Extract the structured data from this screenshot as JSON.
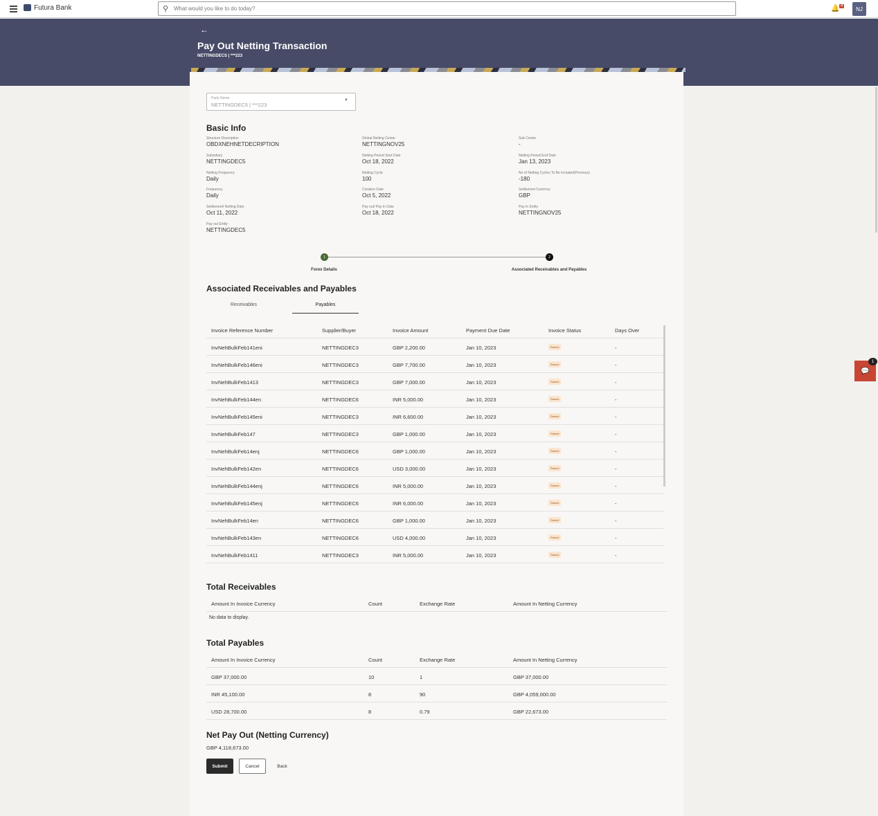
{
  "topbar": {
    "brand": "Futura Bank",
    "search_placeholder": "What would you like to do today?",
    "notification_count": "4",
    "avatar": "NJ"
  },
  "header": {
    "title": "Pay Out Netting Transaction",
    "subtitle": "NETTINGDECS | ***223"
  },
  "party": {
    "label": "Party Name",
    "value": "NETTINGDEC5 | ***223"
  },
  "basic_info": {
    "title": "Basic Info",
    "fields": [
      {
        "label": "Structure Description",
        "value": "OBDXNEHNETDECRIPTION"
      },
      {
        "label": "Global Netting Center",
        "value": "NETTINGNOV25"
      },
      {
        "label": "Sub Center",
        "value": "-"
      },
      {
        "label": "Subsidiary",
        "value": "NETTINGDEC5"
      },
      {
        "label": "Netting Period Start Date",
        "value": "Oct 18, 2022"
      },
      {
        "label": "Netting Period End Date",
        "value": "Jan 13, 2023"
      },
      {
        "label": "Netting Frequency",
        "value": "Daily"
      },
      {
        "label": "Netting Cycle",
        "value": "100"
      },
      {
        "label": "No of Netting Cycles To Be Included(Previous)",
        "value": "-180"
      },
      {
        "label": "Frequency",
        "value": "Daily"
      },
      {
        "label": "Creation Date",
        "value": "Oct 5, 2022"
      },
      {
        "label": "Settlement Currency",
        "value": "GBP"
      },
      {
        "label": "Settlement/ Netting Date",
        "value": "Oct 11, 2022"
      },
      {
        "label": "Pay out/ Pay In Date",
        "value": "Oct 18, 2022"
      },
      {
        "label": "Pay In Entity",
        "value": "NETTINGNOV25"
      },
      {
        "label": "Pay out Entity",
        "value": "NETTINGDEC5"
      }
    ]
  },
  "steps": [
    {
      "num": "1",
      "label": "Forex Details"
    },
    {
      "num": "2",
      "label": "Associated Receivables and Payables"
    }
  ],
  "assoc": {
    "title": "Associated Receivables and Payables",
    "tabs": [
      "Receivables",
      "Payables"
    ],
    "columns": [
      "Invoice Reference Number",
      "Supplier/Buyer",
      "Invoice Amount",
      "Payment Due Date",
      "Invoice Status",
      "Days Over"
    ],
    "rows": [
      [
        "InvNehBulkFeb141eni",
        "NETTINGDEC3",
        "GBP 2,200.00",
        "Jan 10, 2023",
        "Raised",
        "-"
      ],
      [
        "InvNehBulkFeb146eni",
        "NETTINGDEC3",
        "GBP 7,700.00",
        "Jan 10, 2023",
        "Raised",
        "-"
      ],
      [
        "InvNehBulkFeb1413",
        "NETTINGDEC3",
        "GBP 7,000.00",
        "Jan 10, 2023",
        "Raised",
        "-"
      ],
      [
        "InvNehBulkFeb144en",
        "NETTINGDEC6",
        "INR 5,000.00",
        "Jan 10, 2023",
        "Raised",
        "-"
      ],
      [
        "InvNehBulkFeb145eni",
        "NETTINGDEC3",
        "INR 6,600.00",
        "Jan 10, 2023",
        "Raised",
        "-"
      ],
      [
        "InvNehBulkFeb147",
        "NETTINGDEC3",
        "GBP 1,000.00",
        "Jan 10, 2023",
        "Raised",
        "-"
      ],
      [
        "InvNehBulkFeb14enj",
        "NETTINGDEC6",
        "GBP 1,000.00",
        "Jan 10, 2023",
        "Raised",
        "-"
      ],
      [
        "InvNehBulkFeb142en",
        "NETTINGDEC6",
        "USD 3,000.00",
        "Jan 10, 2023",
        "Raised",
        "-"
      ],
      [
        "InvNehBulkFeb144enj",
        "NETTINGDEC6",
        "INR 5,000.00",
        "Jan 10, 2023",
        "Raised",
        "-"
      ],
      [
        "InvNehBulkFeb145enj",
        "NETTINGDEC6",
        "INR 6,000.00",
        "Jan 10, 2023",
        "Raised",
        "-"
      ],
      [
        "InvNehBulkFeb14en",
        "NETTINGDEC6",
        "GBP 1,000.00",
        "Jan 10, 2023",
        "Raised",
        "-"
      ],
      [
        "InvNehBulkFeb143en",
        "NETTINGDEC6",
        "USD 4,000.00",
        "Jan 10, 2023",
        "Raised",
        "-"
      ],
      [
        "InvNehBulkFeb1411",
        "NETTINGDEC3",
        "INR 5,000.00",
        "Jan 10, 2023",
        "Raised",
        "-"
      ]
    ]
  },
  "total_receivables": {
    "title": "Total Receivables",
    "columns": [
      "Amount In Invoice Currency",
      "Count",
      "Exchange Rate",
      "Amount In Netting Currency"
    ],
    "empty": "No data to display."
  },
  "total_payables": {
    "title": "Total Payables",
    "columns": [
      "Amount In Invoice Currency",
      "Count",
      "Exchange Rate",
      "Amount In Netting Currency"
    ],
    "rows": [
      [
        "GBP 37,000.00",
        "10",
        "1",
        "GBP 37,000.00"
      ],
      [
        "INR 45,100.00",
        "8",
        "90",
        "GBP 4,059,000.00"
      ],
      [
        "USD 28,700.00",
        "8",
        "0.79",
        "GBP 22,673.00"
      ]
    ]
  },
  "net": {
    "title": "Net Pay Out (Netting Currency)",
    "value": "GBP 4,118,673.00"
  },
  "buttons": {
    "submit": "Submit",
    "cancel": "Cancel",
    "back": "Back"
  },
  "chat": {
    "count": "1"
  },
  "colors": {
    "header": "#474b67",
    "accent": "#c74634",
    "step_done": "#4a6a35",
    "primary_button": "#2b2b2b"
  }
}
